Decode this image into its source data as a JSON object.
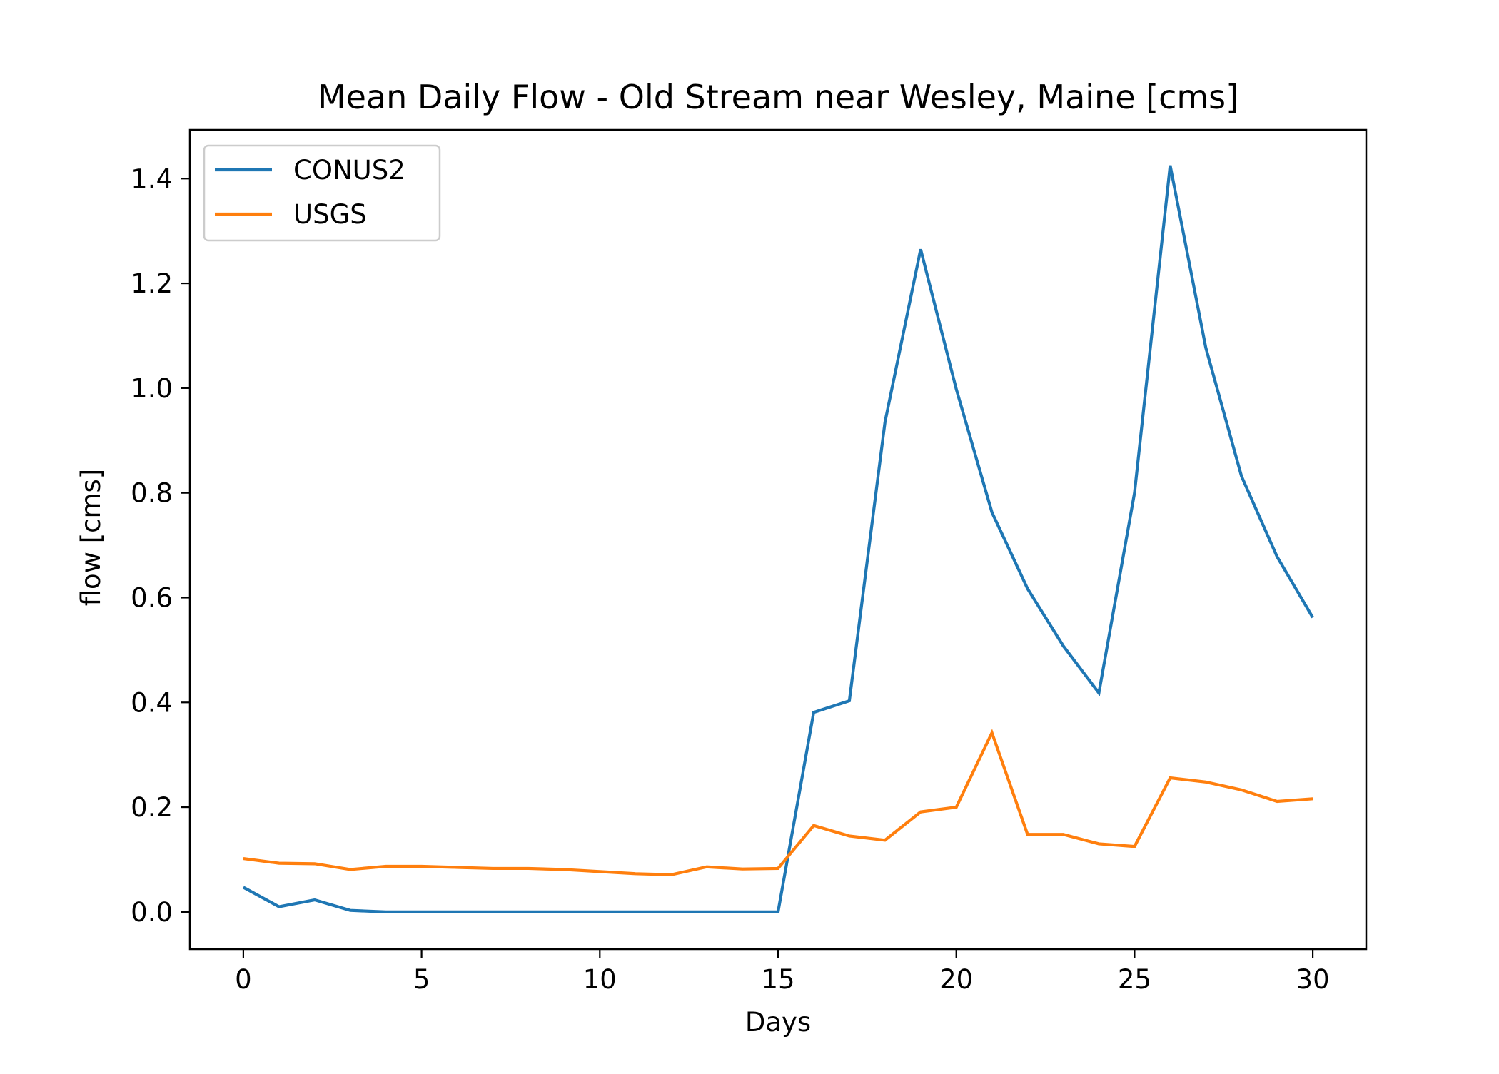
{
  "chart_data": {
    "type": "line",
    "title": "Mean Daily Flow - Old Stream near Wesley, Maine [cms]",
    "xlabel": "Days",
    "ylabel": "flow [cms]",
    "xlim": [
      -1.5,
      31.5
    ],
    "ylim": [
      -0.071,
      1.493
    ],
    "xticks": [
      0,
      5,
      10,
      15,
      20,
      25,
      30
    ],
    "yticks": [
      0.0,
      0.2,
      0.4,
      0.6,
      0.8,
      1.0,
      1.2,
      1.4
    ],
    "xtick_labels": [
      "0",
      "5",
      "10",
      "15",
      "20",
      "25",
      "30"
    ],
    "ytick_labels": [
      "0.0",
      "0.2",
      "0.4",
      "0.6",
      "0.8",
      "1.0",
      "1.2",
      "1.4"
    ],
    "grid": false,
    "legend_position": "top-left",
    "x": [
      0,
      1,
      2,
      3,
      4,
      5,
      6,
      7,
      8,
      9,
      10,
      11,
      12,
      13,
      14,
      15,
      16,
      17,
      18,
      19,
      20,
      21,
      22,
      23,
      24,
      25,
      26,
      27,
      28,
      29,
      30
    ],
    "series": [
      {
        "name": "CONUS2",
        "color": "#1f77b4",
        "values": [
          0.047,
          0.01,
          0.023,
          0.003,
          0.0,
          0.0,
          0.0,
          0.0,
          0.0,
          0.0,
          0.0,
          0.0,
          0.0,
          0.0,
          0.0,
          0.0,
          0.381,
          0.403,
          0.935,
          1.265,
          0.998,
          0.763,
          0.617,
          0.508,
          0.418,
          0.8,
          1.425,
          1.077,
          0.832,
          0.678,
          0.562
        ]
      },
      {
        "name": "USGS",
        "color": "#ff7f0e",
        "values": [
          0.102,
          0.093,
          0.092,
          0.081,
          0.087,
          0.087,
          0.085,
          0.083,
          0.083,
          0.081,
          0.077,
          0.073,
          0.071,
          0.086,
          0.082,
          0.083,
          0.165,
          0.145,
          0.137,
          0.191,
          0.2,
          0.342,
          0.148,
          0.148,
          0.13,
          0.125,
          0.256,
          0.248,
          0.233,
          0.211,
          0.216
        ]
      }
    ]
  }
}
